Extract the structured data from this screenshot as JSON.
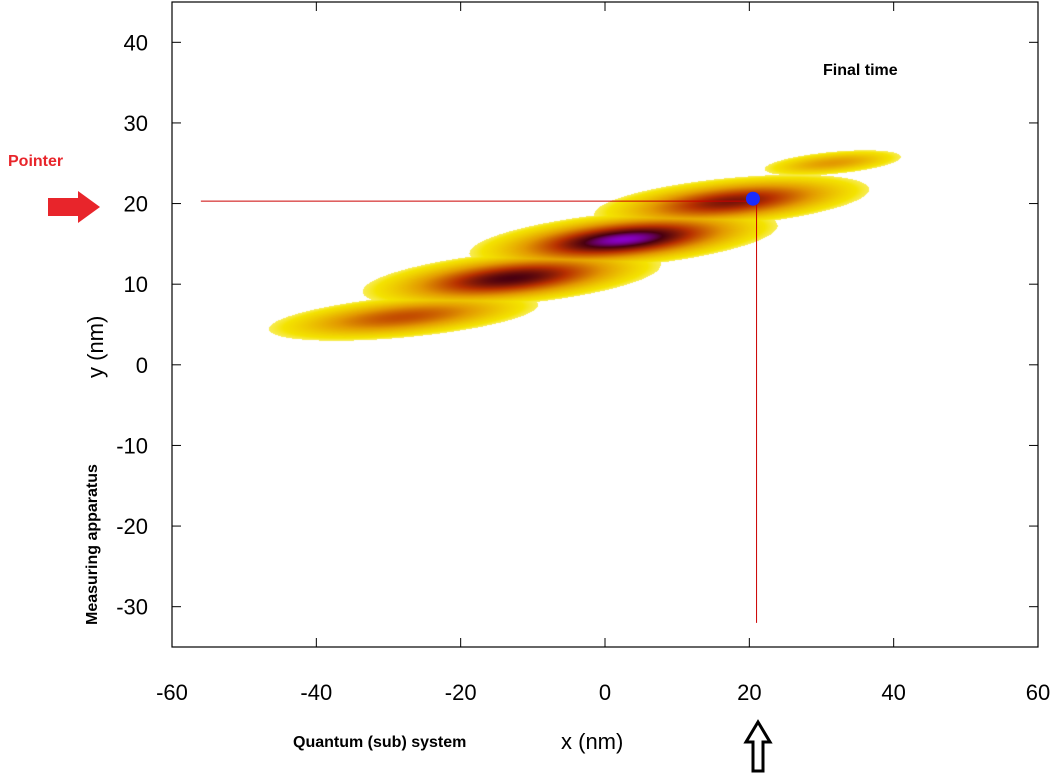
{
  "chart_data": {
    "type": "heatmap",
    "title": "",
    "annotation": "Final time",
    "xlabel": "x (nm)",
    "xlabel_prefix": "Quantum (sub) system",
    "ylabel": "y (nm)",
    "ylabel_prefix": "Measuring apparatus",
    "xlim": [
      -60,
      60
    ],
    "ylim": [
      -35,
      45
    ],
    "xticks": [
      -60,
      -40,
      -20,
      0,
      20,
      40,
      60
    ],
    "yticks": [
      -30,
      -20,
      -10,
      0,
      10,
      20,
      30,
      40
    ],
    "grid": false,
    "colormap": [
      "#ffffff",
      "#f4e300",
      "#e39a00",
      "#b83000",
      "#4a0010",
      "#8a00c8"
    ],
    "blobs": [
      {
        "x": -28.0,
        "y": 6.0,
        "sx": 9.5,
        "sy": 1.3,
        "peak": 0.55
      },
      {
        "x": -13.0,
        "y": 10.8,
        "sx": 9.5,
        "sy": 1.5,
        "peak": 0.85
      },
      {
        "x": 2.5,
        "y": 15.6,
        "sx": 9.5,
        "sy": 1.5,
        "peak": 1.0
      },
      {
        "x": 17.5,
        "y": 20.3,
        "sx": 9.0,
        "sy": 1.4,
        "peak": 0.75
      },
      {
        "x": 31.5,
        "y": 25.1,
        "sx": 5.5,
        "sy": 0.8,
        "peak": 0.35
      }
    ],
    "tilt": 0.3,
    "marker": {
      "x": 20.5,
      "y": 20.6,
      "color": "#1a2bff"
    },
    "pointer_line_y": 20.3,
    "pointer_line_x": 21.0,
    "line_color": "#cc0000"
  },
  "pointer_label": "Pointer",
  "pointer_color": "#e8252b"
}
